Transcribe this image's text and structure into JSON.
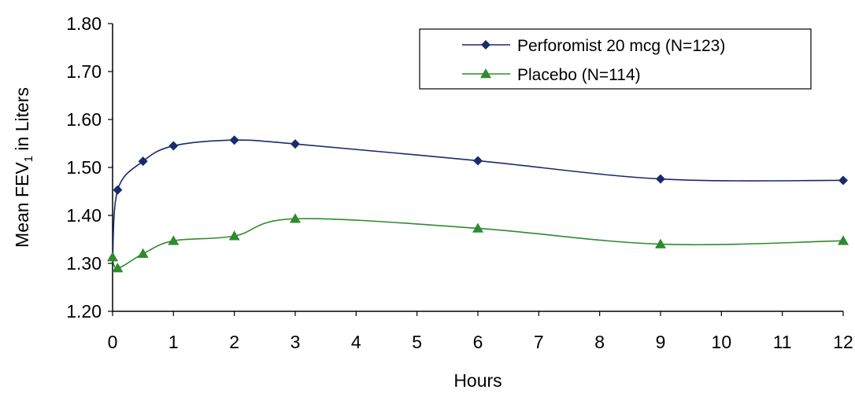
{
  "chart_data": {
    "type": "line",
    "title": "",
    "xlabel": "Hours",
    "ylabel": "Mean FEV",
    "ylabel_subscript": "1",
    "ylabel_suffix": " in Liters",
    "xlim": [
      0,
      12
    ],
    "ylim": [
      1.2,
      1.8
    ],
    "xticks": [
      "0",
      "1",
      "2",
      "3",
      "4",
      "5",
      "6",
      "7",
      "8",
      "9",
      "10",
      "11",
      "12"
    ],
    "yticks": [
      "1.20",
      "1.30",
      "1.40",
      "1.50",
      "1.60",
      "1.70",
      "1.80"
    ],
    "grid": false,
    "legend_position": "top-right",
    "series": [
      {
        "name": "Perforomist 20 mcg (N=123)",
        "color": "#1a2a6c",
        "marker": "diamond",
        "x": [
          0,
          0.083,
          0.5,
          1,
          2,
          3,
          6,
          9,
          12
        ],
        "y": [
          1.3,
          1.453,
          1.513,
          1.545,
          1.557,
          1.549,
          1.514,
          1.476,
          1.473
        ]
      },
      {
        "name": "Placebo (N=114)",
        "color": "#2e8b2e",
        "marker": "triangle",
        "x": [
          0,
          0.083,
          0.5,
          1,
          2,
          3,
          6,
          9,
          12
        ],
        "y": [
          1.313,
          1.29,
          1.32,
          1.347,
          1.357,
          1.393,
          1.373,
          1.34,
          1.347
        ]
      }
    ]
  }
}
